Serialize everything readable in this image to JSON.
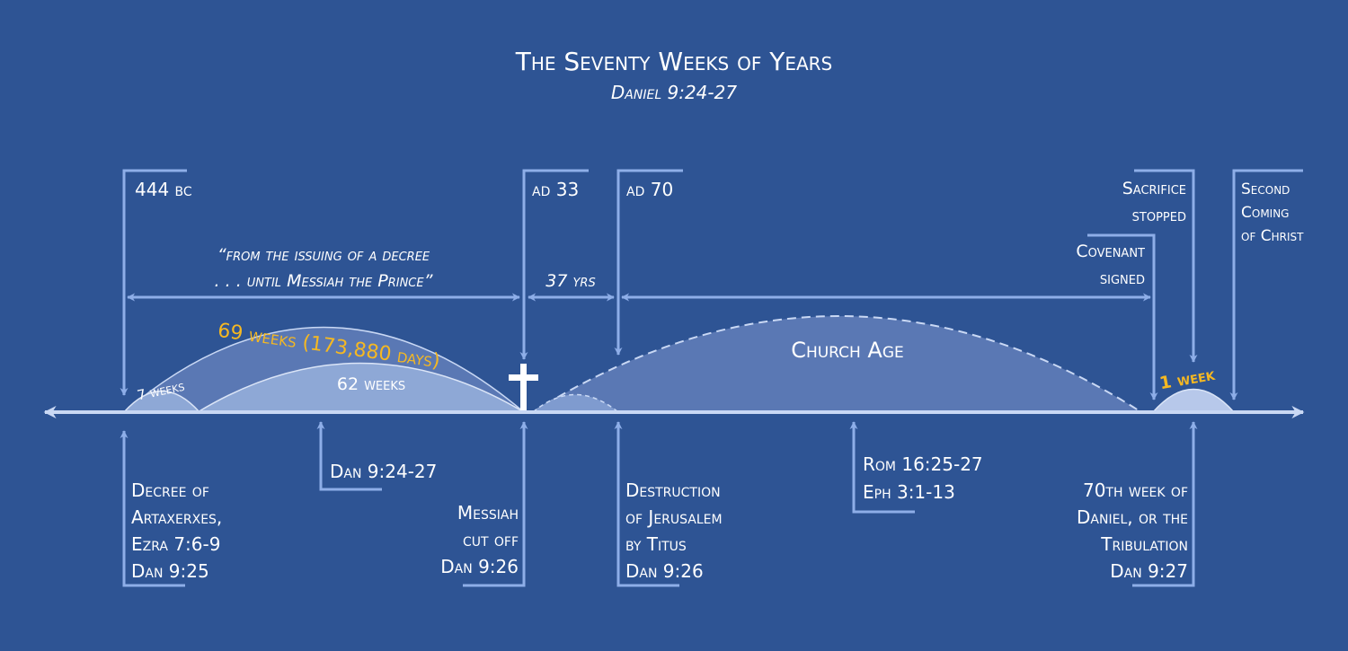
{
  "title": "The Seventy Weeks of Years",
  "subtitle": "Daniel 9:24-27",
  "colors": {
    "background": "#2e5494",
    "line": "#c9d8f4",
    "bracket": "#8eaee8",
    "text": "#ffffff",
    "highlight": "#f5b822",
    "arc_dark": "#5a78b4",
    "arc_light": "#8ea8d6"
  },
  "top_markers": {
    "bc444": "444 bc",
    "ad33": "ad 33",
    "ad70": "ad 70",
    "sacrifice": [
      "Sacrifice",
      "stopped"
    ],
    "covenant": [
      "Covenant",
      "signed"
    ],
    "second_coming": [
      "Second",
      "Coming",
      "of Christ"
    ]
  },
  "quote": [
    "“from the issuing of a decree",
    ". . . until Messiah the Prince”"
  ],
  "span_37": "37 yrs",
  "arcs": {
    "weeks69": "69 weeks (173,880 days)",
    "weeks7": "7 weeks",
    "weeks62": "62 weeks",
    "church_age": "Church Age",
    "week1": "1 week"
  },
  "cross_icon": "cross-icon",
  "bottom_labels": {
    "decree": [
      "Decree of",
      "Artaxerxes,",
      "Ezra 7:6-9",
      "Dan 9:25"
    ],
    "dan2427": "Dan 9:24-27",
    "messiah": [
      "Messiah",
      "cut off",
      "Dan 9:26"
    ],
    "destruction": [
      "Destruction",
      "of Jerusalem",
      "by Titus",
      "Dan 9:26"
    ],
    "rom": [
      "Rom 16:25-27",
      "Eph 3:1-13"
    ],
    "tribulation": [
      "70th week of",
      "Daniel, or the",
      "Tribulation",
      "Dan 9:27"
    ]
  }
}
